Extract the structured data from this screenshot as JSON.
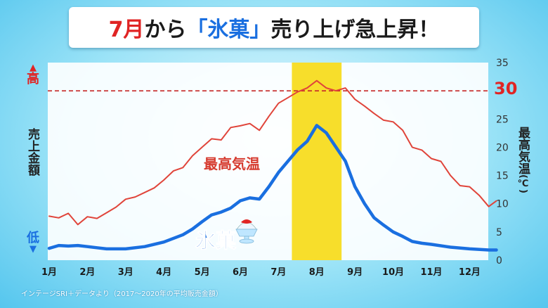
{
  "title": {
    "part1": "7月",
    "part2": "から",
    "part3": "「氷菓」",
    "part4": "売り上げ急上昇！"
  },
  "left_axis": {
    "label": "売上金額",
    "high": "高",
    "low": "低",
    "high_arrow": "▲",
    "low_arrow": "▼"
  },
  "right_axis": {
    "label": "最高気温",
    "unit": "(℃)"
  },
  "threshold_label": "30",
  "source_note": "インテージSRI＋データより（2017～2020年の平均販売金額）",
  "chart_data": {
    "type": "line",
    "categories": [
      "1月",
      "2月",
      "3月",
      "4月",
      "5月",
      "6月",
      "7月",
      "8月",
      "9月",
      "10月",
      "11月",
      "12月"
    ],
    "x_range": [
      1,
      12.7
    ],
    "y2lim": [
      0,
      35
    ],
    "y2ticks": [
      0,
      5,
      10,
      15,
      20,
      25,
      30,
      35
    ],
    "threshold": 30,
    "highlight_x": [
      7.35,
      8.65
    ],
    "grid": false,
    "series": [
      {
        "name": "最高気温",
        "axis": "right",
        "color": "#e0443a",
        "x": [
          1.0,
          1.25,
          1.5,
          1.75,
          2.0,
          2.25,
          2.5,
          2.75,
          3.0,
          3.25,
          3.5,
          3.75,
          4.0,
          4.25,
          4.5,
          4.75,
          5.0,
          5.25,
          5.5,
          5.75,
          6.0,
          6.25,
          6.5,
          6.75,
          7.0,
          7.25,
          7.5,
          7.75,
          8.0,
          8.25,
          8.5,
          8.75,
          9.0,
          9.25,
          9.5,
          9.75,
          10.0,
          10.25,
          10.5,
          10.75,
          11.0,
          11.25,
          11.5,
          11.75,
          12.0,
          12.25,
          12.5,
          12.7
        ],
        "values": [
          7.8,
          7.5,
          8.3,
          6.3,
          7.7,
          7.4,
          8.4,
          9.4,
          10.8,
          11.2,
          12.0,
          12.8,
          14.2,
          15.8,
          16.4,
          18.5,
          20.0,
          21.5,
          21.3,
          23.5,
          23.8,
          24.2,
          23.0,
          25.5,
          27.8,
          28.8,
          29.8,
          30.5,
          31.8,
          30.5,
          30.0,
          30.5,
          28.5,
          27.3,
          26.0,
          24.8,
          24.5,
          23.0,
          20.0,
          19.5,
          18.0,
          17.5,
          15.0,
          13.2,
          13.0,
          11.5,
          9.5,
          10.5
        ]
      },
      {
        "name": "氷菓",
        "axis": "left",
        "color": "#1a6fe0",
        "x": [
          1.0,
          1.25,
          1.5,
          1.75,
          2.0,
          2.25,
          2.5,
          3.0,
          3.5,
          4.0,
          4.5,
          4.75,
          5.0,
          5.25,
          5.5,
          5.75,
          6.0,
          6.25,
          6.5,
          6.75,
          7.0,
          7.25,
          7.5,
          7.75,
          8.0,
          8.25,
          8.5,
          8.75,
          9.0,
          9.25,
          9.5,
          9.75,
          10.0,
          10.25,
          10.5,
          10.75,
          11.0,
          11.5,
          12.0,
          12.5,
          12.7
        ],
        "values": [
          2.1,
          2.6,
          2.5,
          2.6,
          2.4,
          2.2,
          2.0,
          2.0,
          2.4,
          3.2,
          4.5,
          5.5,
          6.8,
          8.0,
          8.5,
          9.2,
          10.5,
          11.0,
          10.8,
          13.0,
          15.5,
          17.5,
          19.5,
          21.0,
          23.8,
          22.5,
          20.0,
          17.5,
          13.0,
          10.0,
          7.5,
          6.2,
          5.0,
          4.2,
          3.3,
          3.0,
          2.8,
          2.3,
          2.0,
          1.8,
          1.8
        ]
      }
    ]
  }
}
